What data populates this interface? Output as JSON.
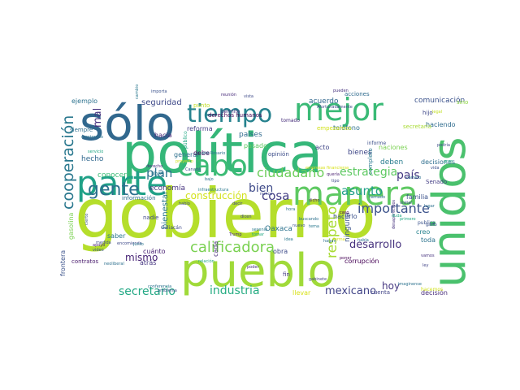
{
  "word_cloud": {
    "words": [
      {
        "text": "gobierno",
        "color": "#b5de2b"
      },
      {
        "text": "política",
        "color": "#35b779"
      },
      {
        "text": "pueblo",
        "color": "#a0da39"
      },
      {
        "text": "sólo",
        "color": "#31688e"
      },
      {
        "text": "unidos",
        "color": "#4ac16d"
      },
      {
        "text": "manera",
        "color": "#5ec962"
      },
      {
        "text": "parte",
        "color": "#1fa187"
      },
      {
        "text": "mejor",
        "color": "#3aba76"
      },
      {
        "text": "tiempo",
        "color": "#26828e"
      },
      {
        "text": "cabo",
        "color": "#3bbb75"
      },
      {
        "text": "gente",
        "color": "#2d708e"
      },
      {
        "text": "ciudadano",
        "color": "#6ccd5a"
      },
      {
        "text": "estrategia",
        "color": "#5ec962"
      },
      {
        "text": "cooperación",
        "color": "#2a788e"
      },
      {
        "text": "plan",
        "color": "#2c728e"
      },
      {
        "text": "mal",
        "color": "#46327e"
      },
      {
        "text": "bien",
        "color": "#3e4a89"
      },
      {
        "text": "cosa",
        "color": "#433e85"
      },
      {
        "text": "calificadora",
        "color": "#7ad151"
      },
      {
        "text": "asunto",
        "color": "#1f9e89"
      },
      {
        "text": "respeto",
        "color": "#a8db34"
      },
      {
        "text": "importante",
        "color": "#3b528b"
      },
      {
        "text": "país",
        "color": "#443983"
      },
      {
        "text": "secretario",
        "color": "#22a884"
      },
      {
        "text": "industria",
        "color": "#25ac82"
      },
      {
        "text": "mismo",
        "color": "#482475"
      },
      {
        "text": "mexicano",
        "color": "#414487"
      },
      {
        "text": "hoy",
        "color": "#453781"
      },
      {
        "text": "desarrollo",
        "color": "#46327e"
      },
      {
        "text": "construcción",
        "color": "#d2e21b"
      },
      {
        "text": "seguridad",
        "color": "#3e4989"
      },
      {
        "text": "acuerdo",
        "color": "#31688e"
      },
      {
        "text": "países",
        "color": "#306a8e"
      },
      {
        "text": "comunicación",
        "color": "#3b528b"
      },
      {
        "text": "teléfono",
        "color": "#2d708e"
      },
      {
        "text": "hacia",
        "color": "#482878"
      },
      {
        "text": "derechos humanos",
        "color": "#440154"
      },
      {
        "text": "reforma",
        "color": "#433e85"
      },
      {
        "text": "pasado",
        "color": "#5ec962"
      },
      {
        "text": "acto",
        "color": "#404688"
      },
      {
        "text": "bienes",
        "color": "#3f4788"
      },
      {
        "text": "deben",
        "color": "#287c8e"
      },
      {
        "text": "naciones",
        "color": "#7ad151"
      },
      {
        "text": "decisiones",
        "color": "#2e6e8e"
      },
      {
        "text": "familia",
        "color": "#3b528b"
      },
      {
        "text": "Oaxaca",
        "color": "#2c728e"
      },
      {
        "text": "corrupción",
        "color": "#440154"
      },
      {
        "text": "obra",
        "color": "#3e4c8a"
      },
      {
        "text": "economía",
        "color": "#46337f"
      },
      {
        "text": "bienestar",
        "color": "#2a788e"
      },
      {
        "text": "cuánto",
        "color": "#482173"
      },
      {
        "text": "atrás",
        "color": "#453581"
      },
      {
        "text": "hecho",
        "color": "#31688e"
      },
      {
        "text": "saber",
        "color": "#2a788e"
      },
      {
        "text": "conocer",
        "color": "#3bbb75"
      },
      {
        "text": "libre",
        "color": "#2a768e"
      },
      {
        "text": "general",
        "color": "#2d708e"
      },
      {
        "text": "debe",
        "color": "#46085c"
      },
      {
        "text": "información",
        "color": "#2e6d8e"
      },
      {
        "text": "ejemplo",
        "color": "#2c728e"
      },
      {
        "text": "siempre",
        "color": "#2e6e8e"
      },
      {
        "text": "haciendo",
        "color": "#2f6c8e"
      },
      {
        "text": "secretaria",
        "color": "#a8db34"
      },
      {
        "text": "hijo",
        "color": "#3f4889"
      },
      {
        "text": "informe",
        "color": "#3c4f8a"
      },
      {
        "text": "opinión",
        "color": "#3d4e8a"
      },
      {
        "text": "acciones",
        "color": "#2f6b8e"
      },
      {
        "text": "sino",
        "color": "#8fd744"
      },
      {
        "text": "nadie",
        "color": "#3f4889"
      },
      {
        "text": "hacerlo",
        "color": "#3b518b"
      },
      {
        "text": "ninguna",
        "color": "#3a538b"
      },
      {
        "text": "creo",
        "color": "#26828e"
      },
      {
        "text": "toda",
        "color": "#2c738e"
      },
      {
        "text": "Senado",
        "color": "#433d84"
      },
      {
        "text": "decisión",
        "color": "#472c7a"
      },
      {
        "text": "cuenta",
        "color": "#414487"
      },
      {
        "text": "llevar",
        "color": "#d8e219"
      },
      {
        "text": "frontera",
        "color": "#3b528b"
      },
      {
        "text": "gasolina",
        "color": "#7ad151"
      },
      {
        "text": "contratos",
        "color": "#481a6c"
      },
      {
        "text": "cada",
        "color": "#472c7a"
      },
      {
        "text": "fin",
        "color": "#453882"
      },
      {
        "text": "permite",
        "color": "#46327e"
      },
      {
        "text": "punto",
        "color": "#c2df23"
      },
      {
        "text": "tomado",
        "color": "#472d7b"
      },
      {
        "text": "empezamos",
        "color": "#d2e21b"
      },
      {
        "text": "completo",
        "color": "#2a788e"
      },
      {
        "text": "público",
        "color": "#22a884"
      },
      {
        "text": "Culiacán",
        "color": "#3e4a89"
      },
      {
        "text": "Trump",
        "color": "#472a7a"
      },
      {
        "text": "publica",
        "color": "#3b528b"
      },
      {
        "text": "hacemos",
        "color": "#d0e11c"
      },
      {
        "text": "desaparecidos",
        "color": "#46327e"
      },
      {
        "text": "infraestructura",
        "color": "#2a788e"
      },
      {
        "text": "relación",
        "color": "#22a884"
      },
      {
        "text": "conferencia",
        "color": "#2c728e"
      },
      {
        "text": "problema",
        "color": "#3b528b"
      },
      {
        "text": "gabinete",
        "color": "#414487"
      },
      {
        "text": "neoliberal",
        "color": "#2d708e"
      },
      {
        "text": "encomienda",
        "color": "#3e4a89"
      },
      {
        "text": "apoyo",
        "color": "#481f70"
      },
      {
        "text": "mostrando",
        "color": "#2c728e"
      },
      {
        "text": "video",
        "color": "#3b528b"
      },
      {
        "text": "servicio",
        "color": "#22a884"
      },
      {
        "text": "medida",
        "color": "#3e4a89"
      },
      {
        "text": "junto",
        "color": "#2a788e"
      },
      {
        "text": "derecho",
        "color": "#472a7a"
      },
      {
        "text": "hablo",
        "color": "#3e4a89"
      },
      {
        "text": "decir",
        "color": "#414487"
      },
      {
        "text": "primero",
        "color": "#22a884"
      },
      {
        "text": "pueden",
        "color": "#46327e"
      },
      {
        "text": "importa",
        "color": "#3b528b"
      },
      {
        "text": "hora",
        "color": "#2c728e"
      },
      {
        "text": "tema",
        "color": "#2a788e"
      },
      {
        "text": "poner",
        "color": "#440154"
      },
      {
        "text": "buscando",
        "color": "#2d708e"
      },
      {
        "text": "vista",
        "color": "#3e4a89"
      },
      {
        "text": "empresas financieras",
        "color": "#d8e219"
      },
      {
        "text": "nuevo",
        "color": "#3b528b"
      },
      {
        "text": "imaginense",
        "color": "#2c728e"
      },
      {
        "text": "caso",
        "color": "#440154"
      },
      {
        "text": "legal",
        "color": "#c2df23"
      },
      {
        "text": "visitar",
        "color": "#3e4a89"
      },
      {
        "text": "dicho",
        "color": "#481f70"
      },
      {
        "text": "bajo",
        "color": "#2d708e"
      },
      {
        "text": "gran",
        "color": "#22a884"
      },
      {
        "text": "cambio",
        "color": "#2a788e"
      },
      {
        "text": "Canadá",
        "color": "#3b528b"
      },
      {
        "text": "año Rosario",
        "color": "#2c728e"
      },
      {
        "text": "reunión",
        "color": "#472a7a"
      },
      {
        "text": "dicen",
        "color": "#414487"
      },
      {
        "text": "lugar",
        "color": "#2d708e"
      },
      {
        "text": "poder",
        "color": "#46327e"
      },
      {
        "text": "podría",
        "color": "#3e4a89"
      },
      {
        "text": "proyecto",
        "color": "#d0e11c"
      },
      {
        "text": "tomar",
        "color": "#22a884"
      },
      {
        "text": "cierto",
        "color": "#3b528b"
      },
      {
        "text": "sexenio",
        "color": "#2a788e"
      },
      {
        "text": "Afortunadamente",
        "color": "#3e4a89"
      },
      {
        "text": "habla",
        "color": "#2c728e"
      },
      {
        "text": "quería",
        "color": "#481f70"
      },
      {
        "text": "llamado",
        "color": "#2d708e"
      },
      {
        "text": "ley",
        "color": "#414487"
      },
      {
        "text": "vida",
        "color": "#3b528b"
      },
      {
        "text": "duda",
        "color": "#22a884"
      },
      {
        "text": "idea",
        "color": "#2a788e"
      },
      {
        "text": "tipo",
        "color": "#3e4a89"
      },
      {
        "text": "vamos",
        "color": "#46327e"
      },
      {
        "text": "camino",
        "color": "#2c728e"
      },
      {
        "text": "forma",
        "color": "#d8e219"
      },
      {
        "text": "gasto",
        "color": "#3b528b"
      },
      {
        "text": "hagan",
        "color": "#2d708e"
      },
      {
        "text": "nunca",
        "color": "#3e4a89"
      }
    ]
  }
}
